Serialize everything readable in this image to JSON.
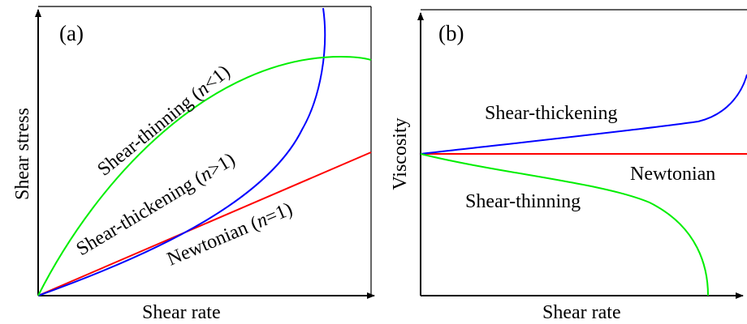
{
  "chart_data": [
    {
      "type": "line",
      "panel_label": "(a)",
      "xlabel": "Shear rate",
      "ylabel": "Shear stress",
      "ticks": "none",
      "grid": false,
      "legend": "none (curves labelled inline)",
      "series": [
        {
          "name": "Newtonian (n=1)",
          "label_plain": "Newtonian (",
          "label_var": "n",
          "label_rest": "=1)",
          "color": "#ff0000",
          "shape": "linear"
        },
        {
          "name": "Shear-thickening (n>1)",
          "label_plain": "Shear-thickening (",
          "label_var": "n",
          "label_rest": ">1)",
          "color": "#0000ff",
          "shape": "convex, rising steeply"
        },
        {
          "name": "Shear-thinning (n<1)",
          "label_plain": "Shear-thinning (",
          "label_var": "n",
          "label_rest": "<1)",
          "color": "#00ee00",
          "shape": "concave, levelling off"
        }
      ]
    },
    {
      "type": "line",
      "panel_label": "(b)",
      "xlabel": "Shear rate",
      "ylabel": "Viscosity",
      "ticks": "none",
      "grid": false,
      "legend": "none (curves labelled inline)",
      "series": [
        {
          "name": "Shear-thickening",
          "color": "#0000ff",
          "shape": "increasing"
        },
        {
          "name": "Newtonian",
          "color": "#ff0000",
          "shape": "constant"
        },
        {
          "name": "Shear-thinning",
          "color": "#00ee00",
          "shape": "decreasing"
        }
      ]
    }
  ]
}
